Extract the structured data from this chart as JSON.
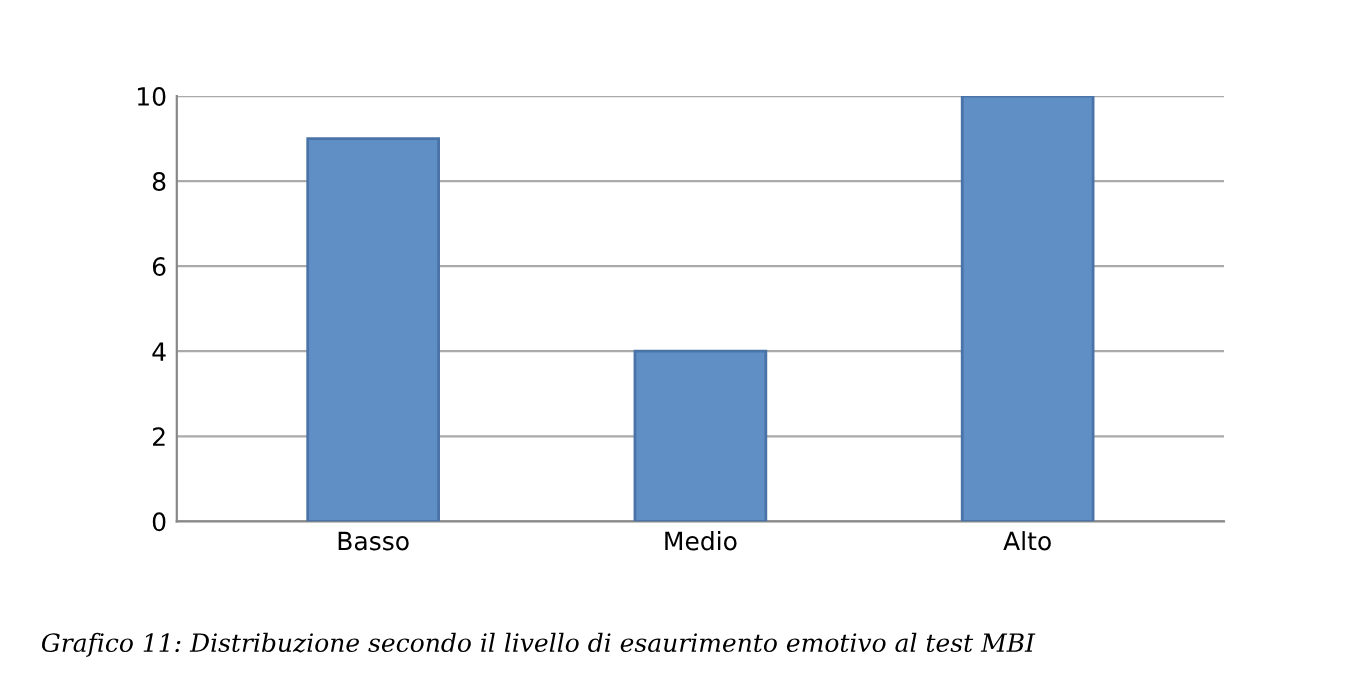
{
  "chart_data": {
    "type": "bar",
    "categories": [
      "Basso",
      "Medio",
      "Alto"
    ],
    "values": [
      9,
      4,
      10
    ],
    "color": "#5f8fc5",
    "ylim": [
      0,
      10
    ],
    "yticks": [
      0,
      2,
      4,
      6,
      8,
      10
    ],
    "grid": "y",
    "annotations": [
      "Grafico 11: Distribuzione secondo il livello di esaurimento emotivo al test MBI"
    ]
  }
}
